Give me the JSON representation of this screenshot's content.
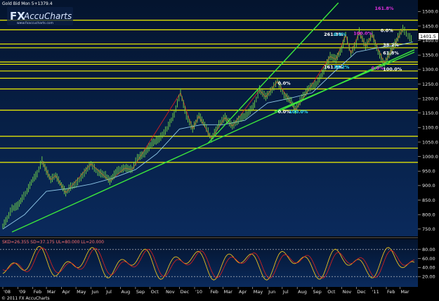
{
  "header": {
    "symbol_text": "Gold Bid Mon 5+1379.4",
    "logo_fx": "FX",
    "logo_brand": "AccuCharts",
    "logo_url": "www.fxaccucharts.com"
  },
  "footer": {
    "copyright": "© 2011 FX AccuCharts"
  },
  "oscillator_header": "SKD=26.355  SD=37.175  UL=80.000  LL=20.000",
  "price_box": "1401.5",
  "colors": {
    "background_top": "#04142e",
    "background_bottom": "#0a2a5c",
    "horizontal_levels": "#f2f200",
    "trendline": "#3ce63c",
    "red_lines": "#e02020",
    "price_candles": "#74d84a",
    "ma_line": "#8fc8e8",
    "stoch_line": "#e8c020",
    "fib_cyan": "#31e4ff",
    "fib_magenta": "#e030e0"
  },
  "chart_data": {
    "type": "line",
    "title": "",
    "instrument": "Gold",
    "xlabel": "",
    "ylabel": "",
    "y_axis_side": "right",
    "ylim": [
      730,
      1530
    ],
    "y_ticks": [
      750,
      800,
      850,
      900,
      950,
      1000,
      1050,
      1100,
      1150,
      1200,
      1250,
      1300,
      1350,
      1400,
      1450,
      1500
    ],
    "y_tick_labels": [
      "750.0",
      "800.0",
      "850.0",
      "900.0",
      "950.0",
      "1000.0",
      "1050.0",
      "1100.0",
      "1150.0",
      "1200.0",
      "1250.0",
      "1300.0",
      "1350.0",
      "1400.0",
      "1450.0",
      "1500.0"
    ],
    "x_range": [
      "2008-12-01",
      "2011-03-31"
    ],
    "x_ticks": [
      {
        "date": "2008-12-01",
        "label": "'08"
      },
      {
        "date": "2009-01-01",
        "label": "'09"
      },
      {
        "date": "2009-02-01",
        "label": "Feb"
      },
      {
        "date": "2009-03-01",
        "label": "Mar"
      },
      {
        "date": "2009-04-01",
        "label": "Apr"
      },
      {
        "date": "2009-05-01",
        "label": "May"
      },
      {
        "date": "2009-06-01",
        "label": "Jun"
      },
      {
        "date": "2009-07-01",
        "label": "Jul"
      },
      {
        "date": "2009-08-01",
        "label": "Aug"
      },
      {
        "date": "2009-09-01",
        "label": "Sep"
      },
      {
        "date": "2009-10-01",
        "label": "Oct"
      },
      {
        "date": "2009-11-01",
        "label": "Nov"
      },
      {
        "date": "2009-12-01",
        "label": "Dec"
      },
      {
        "date": "2010-01-01",
        "label": "'10"
      },
      {
        "date": "2010-02-01",
        "label": "Feb"
      },
      {
        "date": "2010-03-01",
        "label": "Mar"
      },
      {
        "date": "2010-04-01",
        "label": "Apr"
      },
      {
        "date": "2010-05-01",
        "label": "May"
      },
      {
        "date": "2010-06-01",
        "label": "Jun"
      },
      {
        "date": "2010-07-01",
        "label": "Jul"
      },
      {
        "date": "2010-08-01",
        "label": "Aug"
      },
      {
        "date": "2010-09-01",
        "label": "Sep"
      },
      {
        "date": "2010-10-01",
        "label": "Oct"
      },
      {
        "date": "2010-11-01",
        "label": "Nov"
      },
      {
        "date": "2010-12-01",
        "label": "Dec"
      },
      {
        "date": "2011-01-01",
        "label": "'11"
      },
      {
        "date": "2011-02-01",
        "label": "Feb"
      },
      {
        "date": "2011-03-01",
        "label": "Mar"
      }
    ],
    "price_series": [
      [
        "2008-12-01",
        760
      ],
      [
        "2008-12-10",
        785
      ],
      [
        "2008-12-20",
        820
      ],
      [
        "2009-01-01",
        830
      ],
      [
        "2009-01-10",
        855
      ],
      [
        "2009-01-20",
        880
      ],
      [
        "2009-02-01",
        920
      ],
      [
        "2009-02-10",
        940
      ],
      [
        "2009-02-20",
        985
      ],
      [
        "2009-03-01",
        950
      ],
      [
        "2009-03-10",
        920
      ],
      [
        "2009-03-20",
        935
      ],
      [
        "2009-04-01",
        900
      ],
      [
        "2009-04-10",
        875
      ],
      [
        "2009-04-20",
        895
      ],
      [
        "2009-05-01",
        905
      ],
      [
        "2009-05-15",
        935
      ],
      [
        "2009-06-01",
        975
      ],
      [
        "2009-06-15",
        945
      ],
      [
        "2009-07-01",
        935
      ],
      [
        "2009-07-10",
        915
      ],
      [
        "2009-07-25",
        950
      ],
      [
        "2009-08-10",
        960
      ],
      [
        "2009-08-25",
        955
      ],
      [
        "2009-09-05",
        995
      ],
      [
        "2009-09-20",
        1010
      ],
      [
        "2009-10-05",
        1045
      ],
      [
        "2009-10-20",
        1060
      ],
      [
        "2009-11-05",
        1095
      ],
      [
        "2009-11-20",
        1145
      ],
      [
        "2009-12-03",
        1220
      ],
      [
        "2009-12-15",
        1140
      ],
      [
        "2009-12-28",
        1095
      ],
      [
        "2010-01-10",
        1140
      ],
      [
        "2010-01-22",
        1110
      ],
      [
        "2010-02-05",
        1060
      ],
      [
        "2010-02-20",
        1110
      ],
      [
        "2010-03-05",
        1135
      ],
      [
        "2010-03-20",
        1105
      ],
      [
        "2010-04-05",
        1130
      ],
      [
        "2010-04-20",
        1145
      ],
      [
        "2010-05-05",
        1180
      ],
      [
        "2010-05-15",
        1230
      ],
      [
        "2010-05-28",
        1205
      ],
      [
        "2010-06-10",
        1230
      ],
      [
        "2010-06-21",
        1260
      ],
      [
        "2010-07-05",
        1210
      ],
      [
        "2010-07-20",
        1190
      ],
      [
        "2010-07-28",
        1160
      ],
      [
        "2010-08-10",
        1200
      ],
      [
        "2010-08-25",
        1235
      ],
      [
        "2010-09-10",
        1250
      ],
      [
        "2010-09-25",
        1295
      ],
      [
        "2010-10-08",
        1345
      ],
      [
        "2010-10-20",
        1335
      ],
      [
        "2010-11-01",
        1370
      ],
      [
        "2010-11-09",
        1420
      ],
      [
        "2010-11-20",
        1355
      ],
      [
        "2010-12-01",
        1390
      ],
      [
        "2010-12-07",
        1430
      ],
      [
        "2010-12-20",
        1380
      ],
      [
        "2011-01-03",
        1420
      ],
      [
        "2011-01-15",
        1360
      ],
      [
        "2011-01-28",
        1320
      ],
      [
        "2011-02-10",
        1360
      ],
      [
        "2011-02-25",
        1410
      ],
      [
        "2011-03-07",
        1440
      ],
      [
        "2011-03-18",
        1415
      ],
      [
        "2011-03-28",
        1400
      ]
    ],
    "moving_average": [
      [
        "2008-12-01",
        750
      ],
      [
        "2009-01-15",
        800
      ],
      [
        "2009-03-01",
        880
      ],
      [
        "2009-04-15",
        890
      ],
      [
        "2009-06-01",
        905
      ],
      [
        "2009-07-15",
        925
      ],
      [
        "2009-09-01",
        955
      ],
      [
        "2009-10-15",
        1010
      ],
      [
        "2009-12-01",
        1095
      ],
      [
        "2010-01-15",
        1110
      ],
      [
        "2010-03-01",
        1110
      ],
      [
        "2010-04-15",
        1125
      ],
      [
        "2010-06-01",
        1185
      ],
      [
        "2010-07-15",
        1200
      ],
      [
        "2010-09-01",
        1220
      ],
      [
        "2010-10-15",
        1290
      ],
      [
        "2010-12-01",
        1360
      ],
      [
        "2011-01-15",
        1375
      ],
      [
        "2011-03-01",
        1385
      ],
      [
        "2011-03-28",
        1395
      ]
    ],
    "horizontal_levels": [
      1470,
      1437,
      1388,
      1375,
      1326,
      1318,
      1295,
      1270,
      1233,
      1160,
      1070,
      1029,
      980
    ],
    "trendlines": [
      {
        "name": "main-support",
        "from": [
          "2008-12-20",
          740
        ],
        "to": [
          "2011-03-31",
          1368
        ]
      },
      {
        "name": "steep-channel",
        "from": [
          "2010-01-28",
          1045
        ],
        "to": [
          "2010-10-25",
          1530
        ]
      },
      {
        "name": "upper-support",
        "from": [
          "2010-06-15",
          1155
        ],
        "to": [
          "2011-03-31",
          1360
        ]
      }
    ],
    "fib_labels": [
      {
        "text": "261.8%",
        "date": "2010-09-25",
        "price": 1416,
        "color": "white"
      },
      {
        "text": "0.0%",
        "date": "2010-10-15",
        "price": 1416,
        "color": "cyan"
      },
      {
        "text": "161.8%",
        "date": "2010-09-25",
        "price": 1303,
        "color": "white"
      },
      {
        "text": "38.2%",
        "date": "2010-10-15",
        "price": 1303,
        "color": "cyan"
      },
      {
        "text": "0.0%",
        "date": "2010-06-22",
        "price": 1247,
        "color": "white"
      },
      {
        "text": "0.0%",
        "date": "2010-06-22",
        "price": 1150,
        "color": "white"
      },
      {
        "text": "100.0%",
        "date": "2010-07-15",
        "price": 1150,
        "color": "cyan"
      },
      {
        "text": "161.8%",
        "date": "2011-01-08",
        "price": 1506,
        "color": "magenta"
      },
      {
        "text": "0.0%",
        "date": "2011-01-20",
        "price": 1430,
        "color": "white"
      },
      {
        "text": "100.0%",
        "date": "2010-11-25",
        "price": 1420,
        "color": "magenta"
      },
      {
        "text": "38.2%",
        "date": "2011-01-25",
        "price": 1380,
        "color": "white"
      },
      {
        "text": "61.8%",
        "date": "2011-01-25",
        "price": 1352,
        "color": "white"
      },
      {
        "text": "0.0%",
        "date": "2011-01-01",
        "price": 1300,
        "color": "magenta"
      },
      {
        "text": "100.0%",
        "date": "2011-01-25",
        "price": 1296,
        "color": "white"
      }
    ],
    "stochastic": {
      "upper_level": 80,
      "lower_level": 20,
      "ylim": [
        0,
        100
      ],
      "y_ticks": [
        20,
        40,
        60,
        80
      ],
      "y_tick_labels": [
        "20.00",
        "40.00",
        "60.00",
        "80.00"
      ]
    }
  }
}
